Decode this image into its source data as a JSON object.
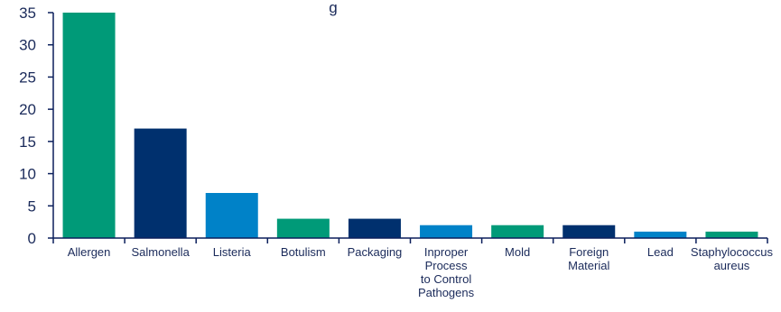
{
  "chart_data": {
    "type": "bar",
    "title": "g",
    "categories": [
      "Allergen",
      "Salmonella",
      "Listeria",
      "Botulism",
      "Packaging",
      "Inproper Process to Control Pathogens",
      "Mold",
      "Foreign Material",
      "Lead",
      "Staphylococcus aureus"
    ],
    "category_lines": [
      [
        "Allergen"
      ],
      [
        "Salmonella"
      ],
      [
        "Listeria"
      ],
      [
        "Botulism"
      ],
      [
        "Packaging"
      ],
      [
        "Inproper",
        "Process",
        "to Control",
        "Pathogens"
      ],
      [
        "Mold"
      ],
      [
        "Foreign",
        "Material"
      ],
      [
        "Lead"
      ],
      [
        "Staphylococcus",
        "aureus"
      ]
    ],
    "values": [
      35,
      17,
      7,
      3,
      3,
      2,
      2,
      2,
      1,
      1
    ],
    "colors": [
      "#009a78",
      "#00306e",
      "#0082c8",
      "#009a78",
      "#00306e",
      "#0082c8",
      "#009a78",
      "#00306e",
      "#0082c8",
      "#009a78"
    ],
    "yticks": [
      0,
      5,
      10,
      15,
      20,
      25,
      30,
      35
    ],
    "ylim": [
      0,
      35
    ],
    "xlabel": "",
    "ylabel": "",
    "grid": false,
    "legend": "none"
  }
}
